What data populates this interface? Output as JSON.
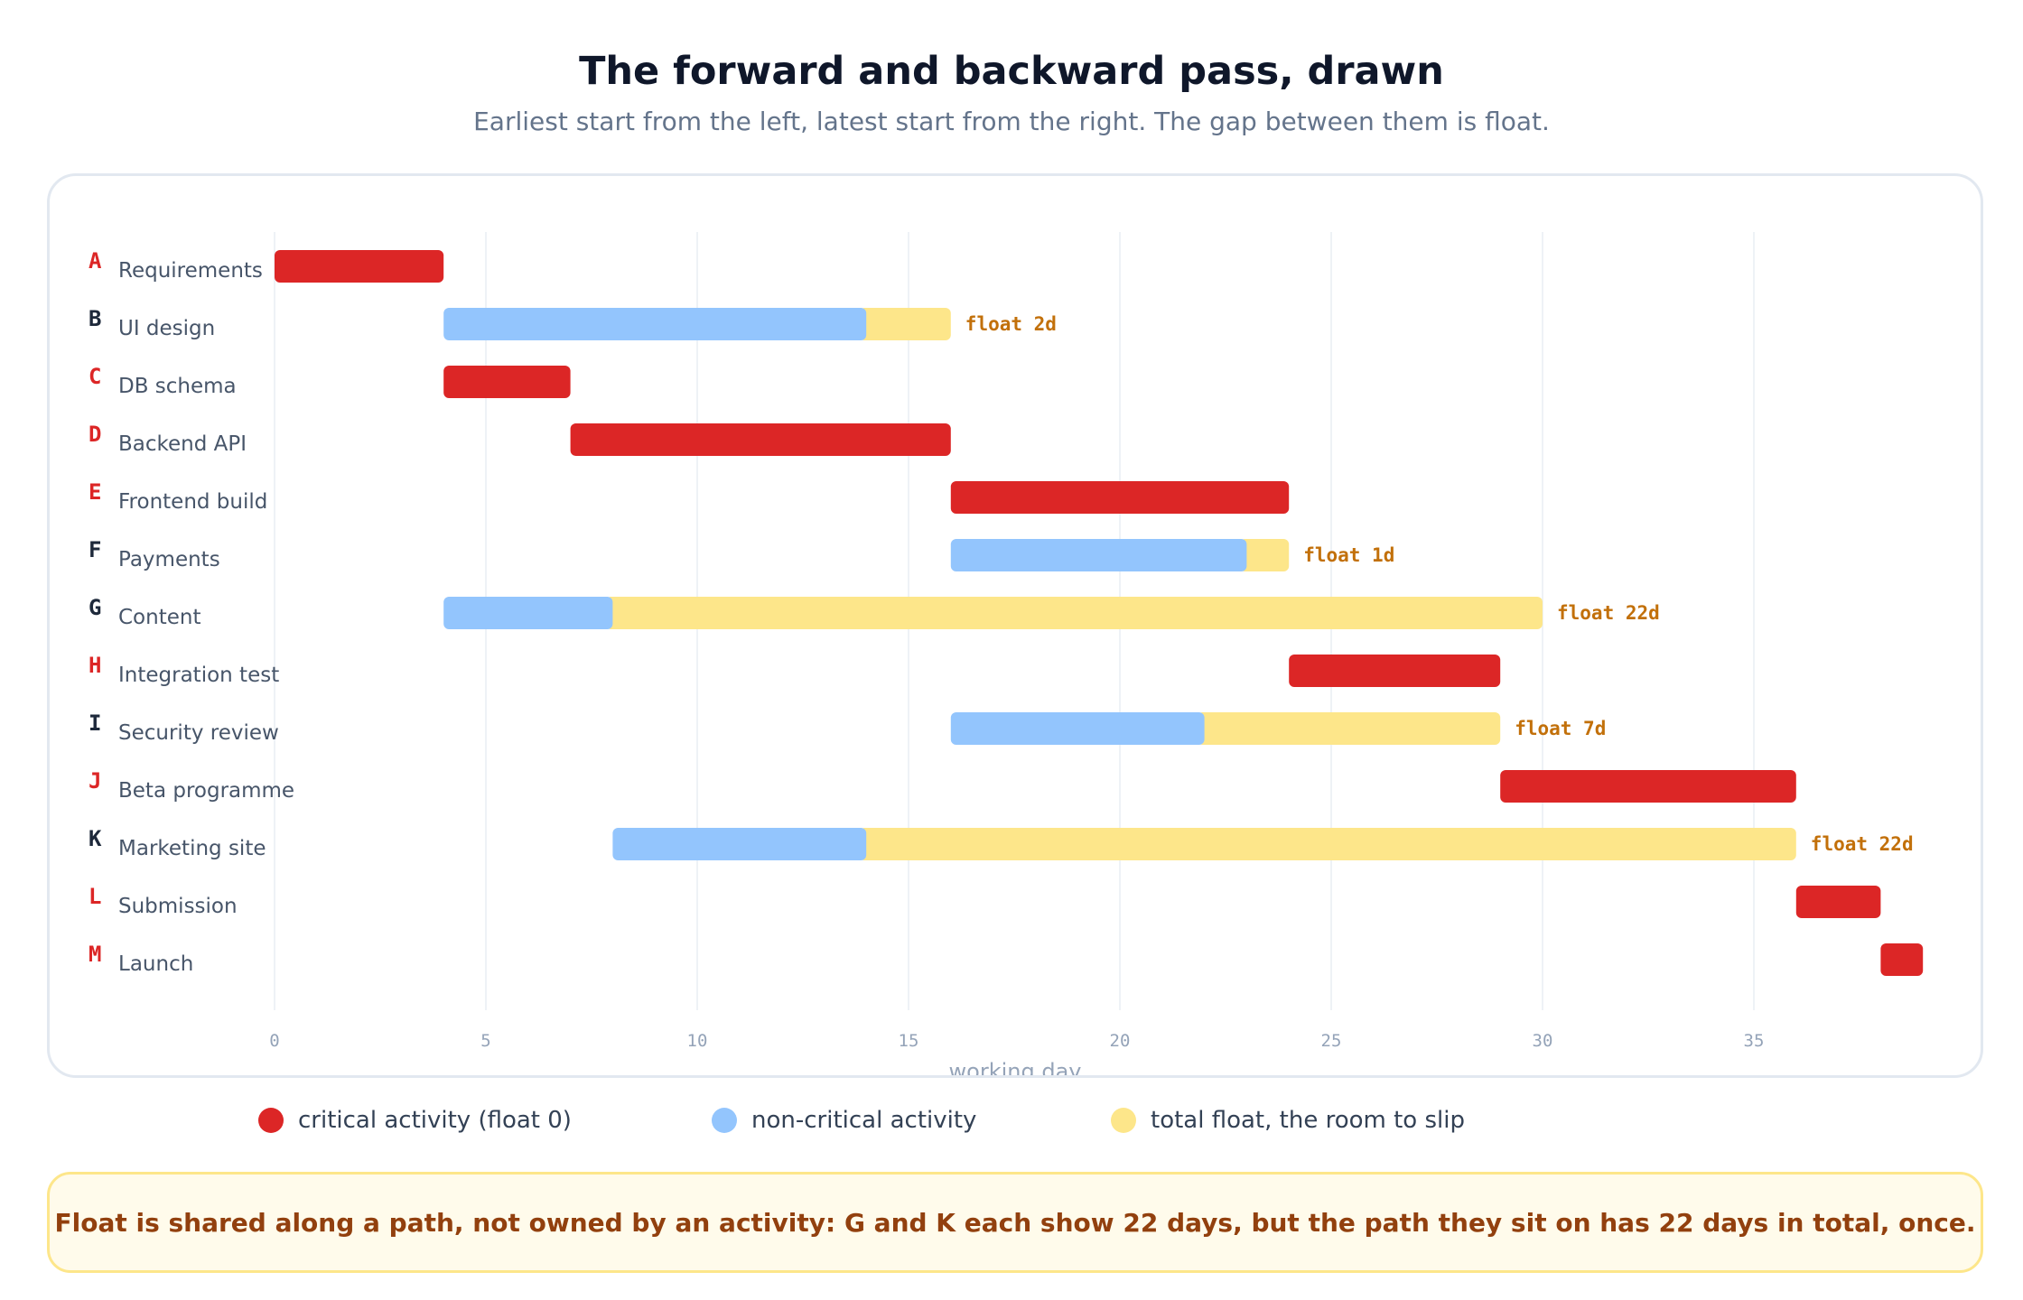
{
  "header": {
    "title": "The forward and backward pass, drawn",
    "subtitle": "Earliest start from the left, latest start from the right. The gap between them is float."
  },
  "colors": {
    "critical": "#dc2626",
    "noncritical": "#93c5fd",
    "float": "#fde68a",
    "float_label": "#c2700a",
    "id_normal": "#1e293b",
    "id_critical": "#dc2626",
    "name": "#475569",
    "grid": "#eef2f6",
    "tick": "#94a3b8"
  },
  "chart_data": {
    "type": "gantt",
    "xlabel": "working day",
    "xlim": [
      0,
      39
    ],
    "xticks": [
      0,
      5,
      10,
      15,
      20,
      25,
      30,
      35
    ],
    "grid": true,
    "float_label_prefix": "float ",
    "float_label_suffix": "d",
    "tasks": [
      {
        "id": "A",
        "name": "Requirements",
        "start": 0,
        "duration": 4,
        "float": 0,
        "critical": true
      },
      {
        "id": "B",
        "name": "UI design",
        "start": 4,
        "duration": 10,
        "float": 2,
        "critical": false
      },
      {
        "id": "C",
        "name": "DB schema",
        "start": 4,
        "duration": 3,
        "float": 0,
        "critical": true
      },
      {
        "id": "D",
        "name": "Backend API",
        "start": 7,
        "duration": 9,
        "float": 0,
        "critical": true
      },
      {
        "id": "E",
        "name": "Frontend build",
        "start": 16,
        "duration": 8,
        "float": 0,
        "critical": true
      },
      {
        "id": "F",
        "name": "Payments",
        "start": 16,
        "duration": 7,
        "float": 1,
        "critical": false
      },
      {
        "id": "G",
        "name": "Content",
        "start": 4,
        "duration": 4,
        "float": 22,
        "critical": false
      },
      {
        "id": "H",
        "name": "Integration test",
        "start": 24,
        "duration": 5,
        "float": 0,
        "critical": true
      },
      {
        "id": "I",
        "name": "Security review",
        "start": 16,
        "duration": 6,
        "float": 7,
        "critical": false
      },
      {
        "id": "J",
        "name": "Beta programme",
        "start": 29,
        "duration": 7,
        "float": 0,
        "critical": true
      },
      {
        "id": "K",
        "name": "Marketing site",
        "start": 8,
        "duration": 6,
        "float": 22,
        "critical": false
      },
      {
        "id": "L",
        "name": "Submission",
        "start": 36,
        "duration": 2,
        "float": 0,
        "critical": true
      },
      {
        "id": "M",
        "name": "Launch",
        "start": 38,
        "duration": 1,
        "float": 0,
        "critical": true
      }
    ]
  },
  "legend": {
    "critical": "critical activity (float 0)",
    "noncritical": "non-critical activity",
    "float": "total float, the room to slip"
  },
  "note": {
    "text": "Float is shared along a path, not owned by an activity: G and K each show 22 days, but the path they sit on has 22 days in total, once."
  }
}
